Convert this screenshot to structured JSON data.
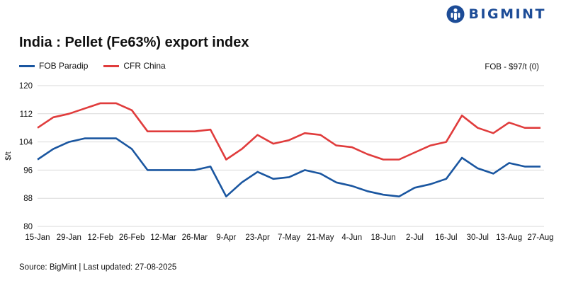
{
  "brand": {
    "name": "BIGMINT",
    "logo_icon": "bigmint-person-icon",
    "color": "#1d4c97"
  },
  "note": "FOB - $97/t (0)",
  "source": "Source: BigMint | Last updated: 27-08-2025",
  "chart_data": {
    "type": "line",
    "title": "India : Pellet (Fe63%) export index",
    "xlabel": "",
    "ylabel": "$/t",
    "ylim": [
      80,
      120
    ],
    "yticks": [
      80,
      88,
      96,
      104,
      112,
      120
    ],
    "grid": true,
    "legend_position": "top-left",
    "x": [
      "15-Jan",
      "22-Jan",
      "29-Jan",
      "5-Feb",
      "12-Feb",
      "19-Feb",
      "26-Feb",
      "5-Mar",
      "12-Mar",
      "19-Mar",
      "26-Mar",
      "2-Apr",
      "9-Apr",
      "16-Apr",
      "23-Apr",
      "30-Apr",
      "7-May",
      "14-May",
      "21-May",
      "28-May",
      "4-Jun",
      "11-Jun",
      "18-Jun",
      "25-Jun",
      "2-Jul",
      "9-Jul",
      "16-Jul",
      "23-Jul",
      "30-Jul",
      "6-Aug",
      "13-Aug",
      "20-Aug",
      "27-Aug"
    ],
    "xtick_labels": [
      "15-Jan",
      "29-Jan",
      "12-Feb",
      "26-Feb",
      "12-Mar",
      "26-Mar",
      "9-Apr",
      "23-Apr",
      "7-May",
      "21-May",
      "4-Jun",
      "18-Jun",
      "2-Jul",
      "16-Jul",
      "30-Jul",
      "13-Aug",
      "27-Aug"
    ],
    "series": [
      {
        "name": "FOB Paradip",
        "color": "#1a56a0",
        "values": [
          99,
          102,
          104,
          105,
          105,
          105,
          102,
          96,
          96,
          96,
          96,
          97,
          88.5,
          92.5,
          95.5,
          93.5,
          94,
          96,
          95,
          92.5,
          91.5,
          90,
          89,
          88.5,
          91,
          92,
          93.5,
          99.5,
          96.5,
          95,
          98,
          97,
          97
        ]
      },
      {
        "name": "CFR China",
        "color": "#e03c3c",
        "values": [
          108,
          111,
          112,
          113.5,
          115,
          115,
          113,
          107,
          107,
          107,
          107,
          107.5,
          99,
          102,
          106,
          103.5,
          104.5,
          106.5,
          106,
          103,
          102.5,
          100.5,
          99,
          99,
          101,
          103,
          104,
          111.5,
          108,
          106.5,
          109.5,
          108,
          108
        ]
      }
    ]
  }
}
